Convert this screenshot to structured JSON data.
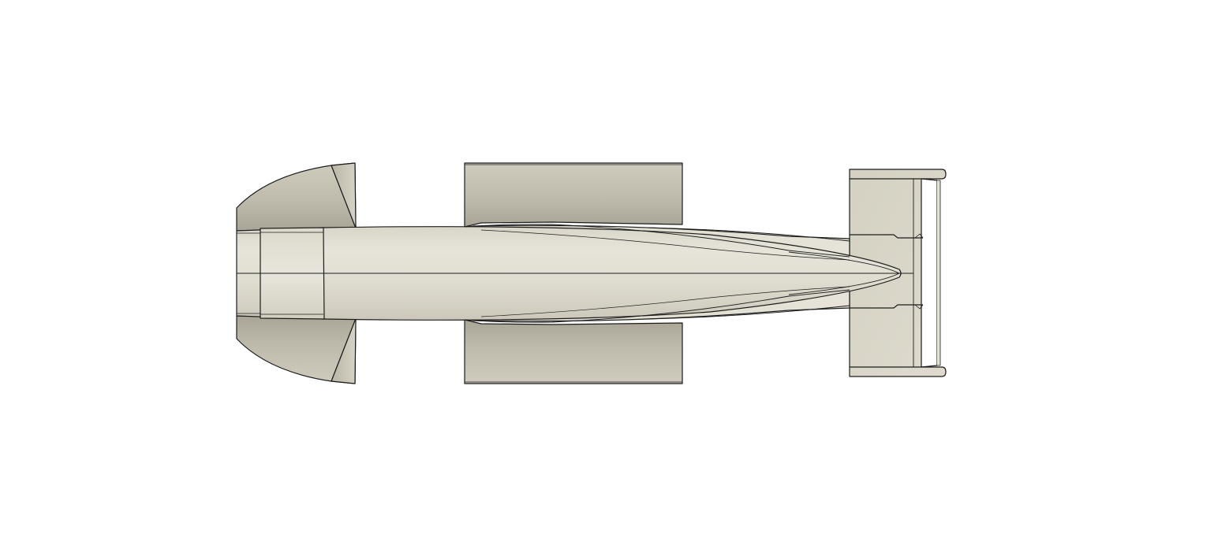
{
  "viewport": {
    "background": "#ffffff",
    "model": {
      "name": "race-car-body",
      "view": "top",
      "body_color": "#e0ddd0",
      "edge_color": "#1c1c1c"
    }
  }
}
